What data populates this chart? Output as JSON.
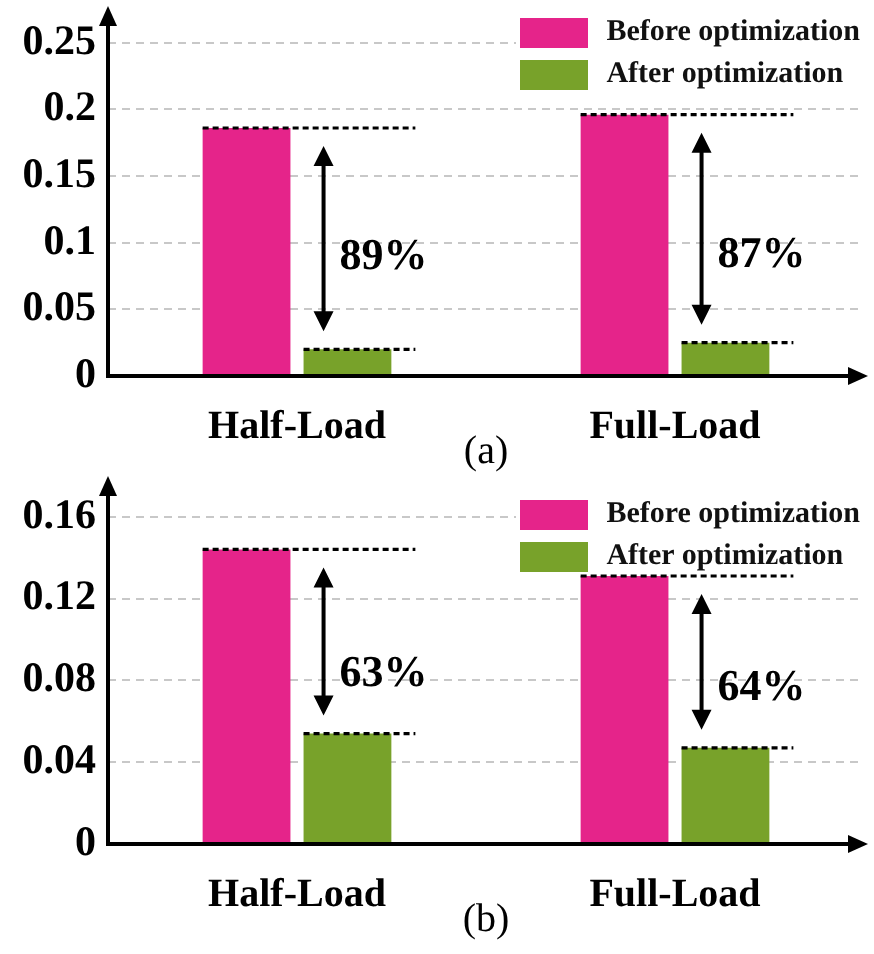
{
  "chart_data": [
    {
      "type": "bar",
      "categories": [
        "Half-Load",
        "Full-Load"
      ],
      "series": [
        {
          "name": "Before optimization",
          "color": "#e5248a",
          "values": [
            0.186,
            0.196
          ]
        },
        {
          "name": "After optimization",
          "color": "#78a22a",
          "values": [
            0.02,
            0.025
          ]
        }
      ],
      "ylim": [
        0,
        0.27
      ],
      "yticks": [
        0,
        0.05,
        0.1,
        0.15,
        0.2,
        0.25
      ],
      "grid": "y",
      "legend": "top right",
      "annotations": [
        {
          "text": "89%",
          "x": "Half-Load",
          "y": 0.089
        },
        {
          "text": "87%",
          "x": "Full-Load",
          "y": 0.09
        },
        "(a)"
      ]
    },
    {
      "type": "bar",
      "categories": [
        "Half-Load",
        "Full-Load"
      ],
      "series": [
        {
          "name": "Before optimization",
          "color": "#e5248a",
          "values": [
            0.144,
            0.131
          ]
        },
        {
          "name": "After optimization",
          "color": "#78a22a",
          "values": [
            0.054,
            0.047
          ]
        }
      ],
      "ylim": [
        0,
        0.175
      ],
      "yticks": [
        0,
        0.04,
        0.08,
        0.12,
        0.16
      ],
      "grid": "y",
      "legend": "top right",
      "annotations": [
        {
          "text": "63%",
          "x": "Half-Load",
          "y": 0.083
        },
        {
          "text": "64%",
          "x": "Full-Load",
          "y": 0.076
        },
        "(b)"
      ]
    }
  ]
}
